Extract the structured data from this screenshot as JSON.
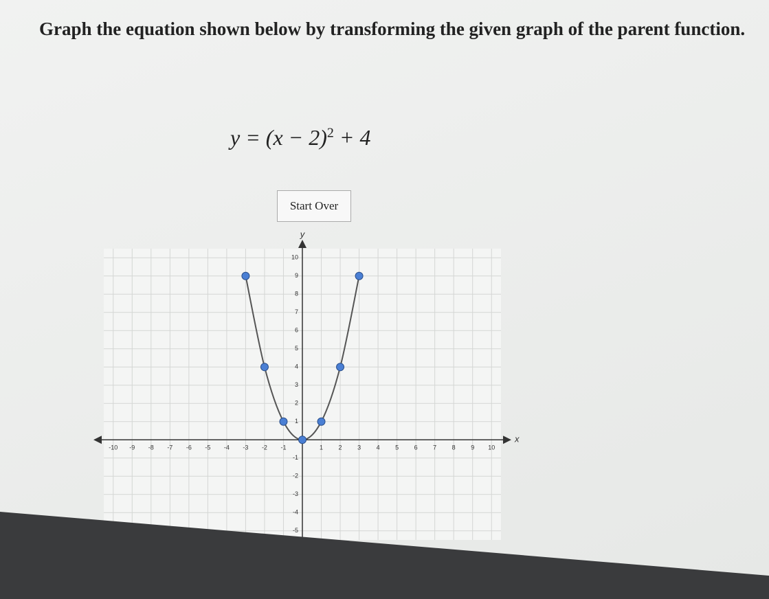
{
  "instruction": "Graph the equation shown below by transforming the given graph of the parent function.",
  "equation": {
    "base": "y = (x − 2)",
    "exponent": "2",
    "tail": "+ 4"
  },
  "button": "Start Over",
  "chart_data": {
    "type": "line",
    "x_label": "x",
    "y_label": "y",
    "x": [
      -3,
      -2,
      -1,
      0,
      1,
      2,
      3
    ],
    "values": [
      9,
      4,
      1,
      0,
      1,
      4,
      9
    ],
    "color": "#555555",
    "point_color": "#4a7fd4",
    "xlim": [
      -10.5,
      10.5
    ],
    "ylim": [
      -5.5,
      10.5
    ],
    "xticks": [
      -10,
      -9,
      -8,
      -7,
      -6,
      -5,
      -4,
      -3,
      -2,
      -1,
      1,
      2,
      3,
      4,
      5,
      6,
      7,
      8,
      9,
      10
    ],
    "yticks": [
      -5,
      -4,
      -3,
      -2,
      -1,
      1,
      2,
      3,
      4,
      5,
      6,
      7,
      8,
      9,
      10
    ],
    "grid": true
  }
}
